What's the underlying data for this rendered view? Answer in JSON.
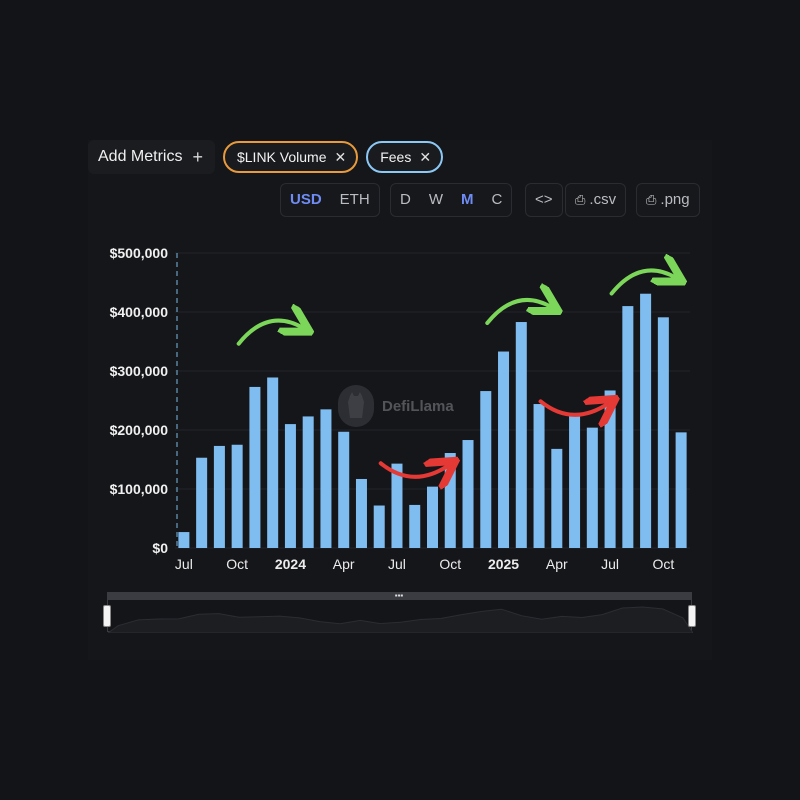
{
  "topbar": {
    "add_metrics_label": "Add Metrics",
    "add_icon": "plus-icon",
    "pills": [
      {
        "label": "$LINK Volume",
        "color": "#e89a3c"
      },
      {
        "label": "Fees",
        "color": "#8cc8f5"
      }
    ],
    "close_glyph": "✕"
  },
  "toolbar": {
    "currency": [
      "USD",
      "ETH"
    ],
    "currency_active": "USD",
    "period": [
      "D",
      "W",
      "M",
      "C"
    ],
    "period_active": "M",
    "embed_label": "<>",
    "csv_label": ".csv",
    "png_label": ".png",
    "accent_color": "#6f8cf5"
  },
  "watermark": {
    "text": "DefiLlama"
  },
  "chart_data": {
    "type": "bar",
    "bar_color": "#7fbcf0",
    "ylim": [
      0,
      500000
    ],
    "y_ticks": [
      "$0",
      "$100,000",
      "$200,000",
      "$300,000",
      "$400,000",
      "$500,000"
    ],
    "x_tick_labels": [
      {
        "label": "Jul",
        "index": 0,
        "bold": false
      },
      {
        "label": "Oct",
        "index": 3,
        "bold": false
      },
      {
        "label": "2024",
        "index": 6,
        "bold": true
      },
      {
        "label": "Apr",
        "index": 9,
        "bold": false
      },
      {
        "label": "Jul",
        "index": 12,
        "bold": false
      },
      {
        "label": "Oct",
        "index": 15,
        "bold": false
      },
      {
        "label": "2025",
        "index": 18,
        "bold": true
      },
      {
        "label": "Apr",
        "index": 21,
        "bold": false
      },
      {
        "label": "Jul",
        "index": 24,
        "bold": false
      },
      {
        "label": "Oct",
        "index": 27,
        "bold": false
      }
    ],
    "categories": [
      "2023-07",
      "2023-08",
      "2023-09",
      "2023-10",
      "2023-11",
      "2023-12",
      "2024-01",
      "2024-02",
      "2024-03",
      "2024-04",
      "2024-05",
      "2024-06",
      "2024-07",
      "2024-08",
      "2024-09",
      "2024-10",
      "2024-11",
      "2024-12",
      "2025-01",
      "2025-02",
      "2025-03",
      "2025-04",
      "2025-05",
      "2025-06",
      "2025-07",
      "2025-08",
      "2025-09",
      "2025-10",
      "2025-11"
    ],
    "values": [
      27000,
      153000,
      173000,
      175000,
      273000,
      289000,
      210000,
      223000,
      235000,
      197000,
      117000,
      72000,
      143000,
      73000,
      104000,
      161000,
      183000,
      266000,
      333000,
      383000,
      244000,
      168000,
      229000,
      204000,
      267000,
      410000,
      431000,
      391000,
      196000
    ],
    "annotations": [
      {
        "type": "arrow-up",
        "color": "#7cd65a",
        "x_index": 5,
        "value": 370000
      },
      {
        "type": "arrow-up",
        "color": "#7cd65a",
        "x_index": 19,
        "value": 405000
      },
      {
        "type": "arrow-up",
        "color": "#7cd65a",
        "x_index": 26,
        "value": 455000
      },
      {
        "type": "arrow-down",
        "color": "#e53935",
        "x_index": 13,
        "value": 130000
      },
      {
        "type": "arrow-down",
        "color": "#e53935",
        "x_index": 22,
        "value": 235000
      }
    ]
  }
}
